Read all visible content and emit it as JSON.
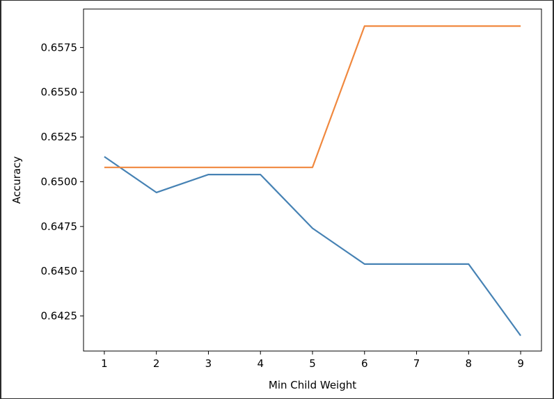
{
  "chart_data": {
    "type": "line",
    "title": "",
    "xlabel": "Min Child Weight",
    "ylabel": "Accuracy",
    "x": [
      1,
      2,
      3,
      4,
      5,
      6,
      7,
      8,
      9
    ],
    "xticks": [
      "1",
      "2",
      "3",
      "4",
      "5",
      "6",
      "7",
      "8",
      "9"
    ],
    "yticks": [
      "0.6425",
      "0.6450",
      "0.6475",
      "0.6500",
      "0.6525",
      "0.6550",
      "0.6575"
    ],
    "xlim": [
      0.6,
      9.4
    ],
    "ylim": [
      0.64054,
      0.65965
    ],
    "grid": false,
    "series": [
      {
        "color": "#4682b4",
        "values": [
          0.6514,
          0.6494,
          0.6504,
          0.6504,
          0.6474,
          0.6454,
          0.6454,
          0.6454,
          0.6414
        ]
      },
      {
        "color": "#f0883e",
        "values": [
          0.6508,
          0.6508,
          0.6508,
          0.6508,
          0.6508,
          0.6587,
          0.6587,
          0.6587,
          0.6587
        ]
      }
    ]
  }
}
